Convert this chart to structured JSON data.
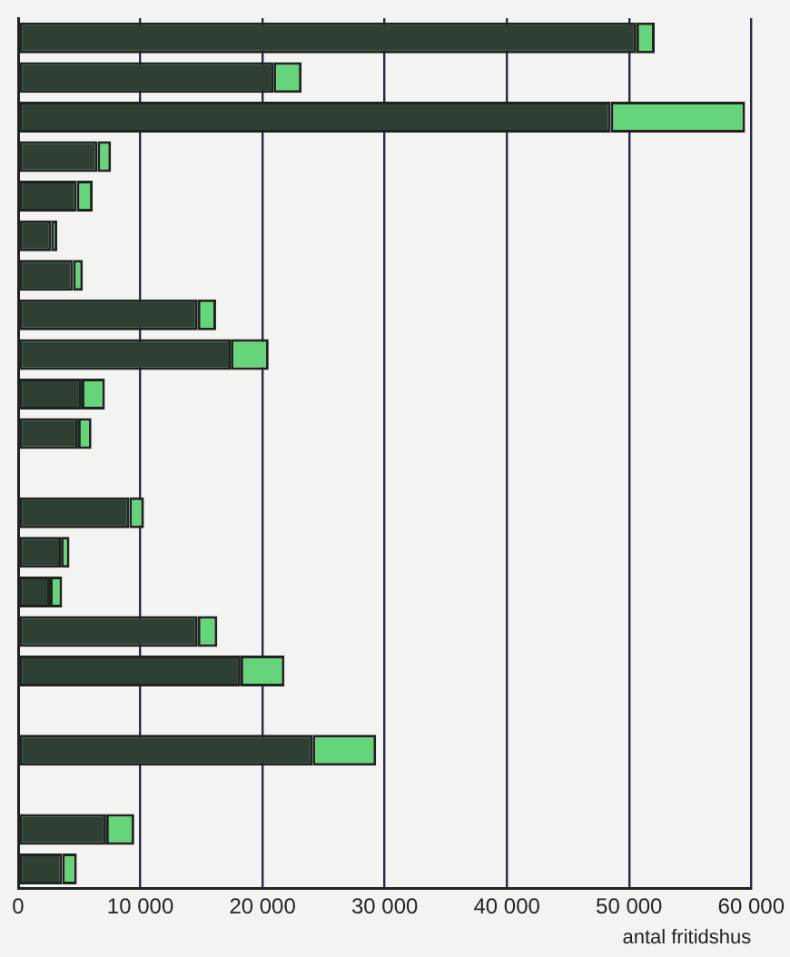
{
  "chart_data": {
    "type": "bar",
    "orientation": "horizontal",
    "stacked": true,
    "xlabel": "antal fritidshus",
    "categories": [
      null,
      null,
      null,
      null,
      null,
      null,
      null,
      null,
      null,
      null,
      null,
      null,
      null,
      null,
      null,
      null,
      null,
      null,
      null,
      null,
      null,
      null
    ],
    "series": [
      {
        "color": "#2e3f33",
        "values": [
          50600,
          20900,
          48500,
          6500,
          4800,
          2700,
          4500,
          14700,
          17400,
          5200,
          4900,
          null,
          9100,
          3500,
          2600,
          14700,
          18200,
          null,
          24100,
          null,
          7200,
          3600
        ]
      },
      {
        "color": "#66d47a",
        "values": [
          1500,
          2300,
          11000,
          1100,
          1300,
          500,
          800,
          1500,
          3100,
          1900,
          1100,
          null,
          1200,
          700,
          1000,
          1600,
          3600,
          null,
          5200,
          null,
          2300,
          1200
        ]
      }
    ],
    "xlim": [
      0,
      60000
    ],
    "xticks": [
      0,
      {
        "value": 10000,
        "label": "10 000"
      },
      {
        "value": 20000,
        "label": "20 000"
      },
      {
        "value": 30000,
        "label": "30 000"
      },
      {
        "value": 40000,
        "label": "40 000"
      },
      {
        "value": 50000,
        "label": "50 000"
      },
      {
        "value": 60000,
        "label": "60 000"
      }
    ],
    "grid": "x",
    "legend": false,
    "tick_labels": "x"
  }
}
